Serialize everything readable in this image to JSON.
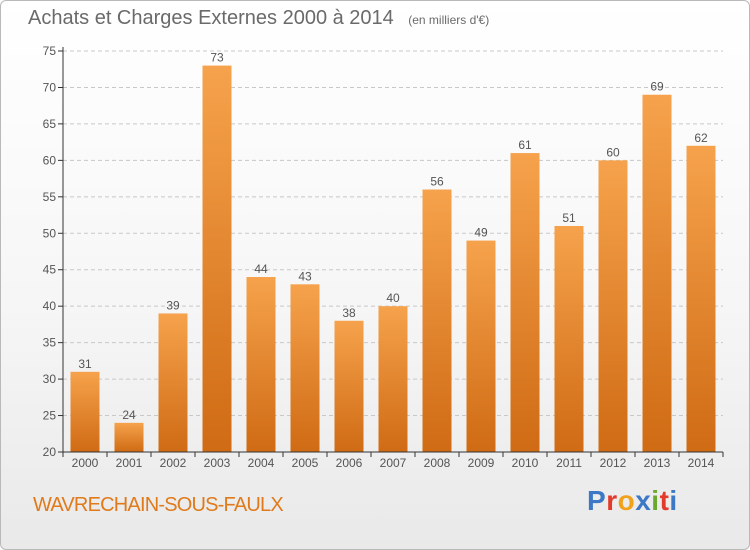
{
  "header": {
    "title": "Achats et Charges Externes 2000 à 2014",
    "unit": "(en milliers d'€)"
  },
  "footer": {
    "commune": "WAVRECHAIN-SOUS-FAULX",
    "logo": "Proxiti",
    "logo_colors": [
      "#3d78c6",
      "#e23a2b",
      "#f0a21a",
      "#3d78c6",
      "#6aa82e",
      "#e23a2b",
      "#3d78c6"
    ]
  },
  "colors": {
    "bar_light": "#f6a24c",
    "bar_dark": "#cf6b14",
    "grid": "#c8c8c8",
    "axis": "#333333",
    "text": "#555555",
    "commune": "#e07a1a"
  },
  "chart_data": {
    "type": "bar",
    "title": "Achats et Charges Externes 2000 à 2014",
    "subtitle": "(en milliers d'€)",
    "categories": [
      "2000",
      "2001",
      "2002",
      "2003",
      "2004",
      "2005",
      "2006",
      "2007",
      "2008",
      "2009",
      "2010",
      "2011",
      "2012",
      "2013",
      "2014"
    ],
    "values": [
      31,
      24,
      39,
      73,
      44,
      43,
      38,
      40,
      56,
      49,
      61,
      51,
      60,
      69,
      62
    ],
    "ylim": [
      20,
      75
    ],
    "yticks": [
      20,
      25,
      30,
      35,
      40,
      45,
      50,
      55,
      60,
      65,
      70,
      75
    ],
    "data_labels": true,
    "grid": true
  }
}
